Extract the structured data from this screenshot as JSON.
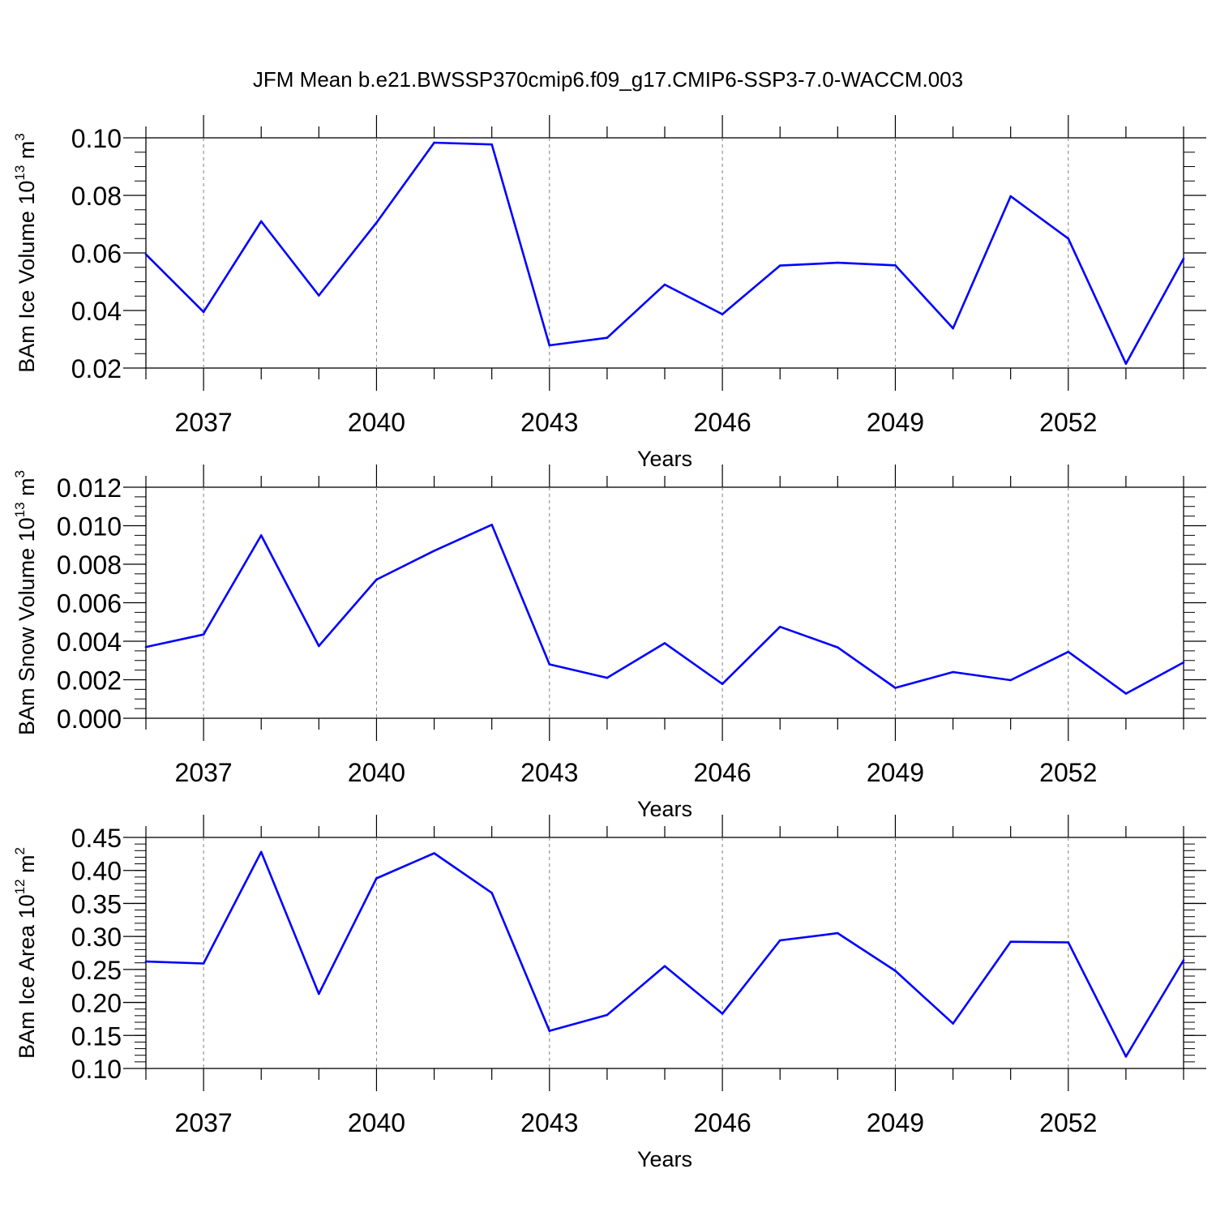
{
  "title": "JFM Mean b.e21.BWSSP370cmip6.f09_g17.CMIP6-SSP3-7.0-WACCM.003",
  "line_color": "#0000ff",
  "chart_data": [
    {
      "type": "line",
      "ylabel_main": "BAm Ice Volume 10",
      "ylabel_exp": "13",
      "ylabel_unit": " m",
      "ylabel_unit_exp": "3",
      "xlabel": "Years",
      "xlim": [
        2036,
        2054
      ],
      "ylim": [
        0.02,
        0.1
      ],
      "x_ticks": [
        2037,
        2040,
        2043,
        2046,
        2049,
        2052
      ],
      "x_tick_labels": [
        "2037",
        "2040",
        "2043",
        "2046",
        "2049",
        "2052"
      ],
      "y_ticks": [
        0.02,
        0.04,
        0.06,
        0.08,
        0.1
      ],
      "y_tick_labels": [
        "0.02",
        "0.04",
        "0.06",
        "0.08",
        "0.10"
      ],
      "y_minor_step": 0.005,
      "x": [
        2036,
        2037,
        2038,
        2039,
        2040,
        2041,
        2042,
        2043,
        2044,
        2045,
        2046,
        2047,
        2048,
        2049,
        2050,
        2051,
        2052,
        2053,
        2054
      ],
      "values": [
        0.0595,
        0.0395,
        0.071,
        0.0452,
        0.0705,
        0.0983,
        0.0977,
        0.0279,
        0.0305,
        0.049,
        0.0387,
        0.0556,
        0.0566,
        0.0557,
        0.0338,
        0.0797,
        0.065,
        0.0215,
        0.058
      ]
    },
    {
      "type": "line",
      "ylabel_main": "BAm Snow Volume 10",
      "ylabel_exp": "13",
      "ylabel_unit": " m",
      "ylabel_unit_exp": "3",
      "xlabel": "Years",
      "xlim": [
        2036,
        2054
      ],
      "ylim": [
        0.0,
        0.012
      ],
      "x_ticks": [
        2037,
        2040,
        2043,
        2046,
        2049,
        2052
      ],
      "x_tick_labels": [
        "2037",
        "2040",
        "2043",
        "2046",
        "2049",
        "2052"
      ],
      "y_ticks": [
        0.0,
        0.002,
        0.004,
        0.006,
        0.008,
        0.01,
        0.012
      ],
      "y_tick_labels": [
        "0.000",
        "0.002",
        "0.004",
        "0.006",
        "0.008",
        "0.010",
        "0.012"
      ],
      "y_minor_step": 0.0005,
      "x": [
        2036,
        2037,
        2038,
        2039,
        2040,
        2041,
        2042,
        2043,
        2044,
        2045,
        2046,
        2047,
        2048,
        2049,
        2050,
        2051,
        2052,
        2053,
        2054
      ],
      "values": [
        0.0037,
        0.00435,
        0.0095,
        0.00375,
        0.0072,
        0.0087,
        0.01005,
        0.0028,
        0.0021,
        0.0039,
        0.00178,
        0.00475,
        0.00368,
        0.00158,
        0.0024,
        0.00198,
        0.00345,
        0.00128,
        0.0029
      ]
    },
    {
      "type": "line",
      "ylabel_main": "BAm Ice Area 10",
      "ylabel_exp": "12",
      "ylabel_unit": " m",
      "ylabel_unit_exp": "2",
      "xlabel": "Years",
      "xlim": [
        2036,
        2054
      ],
      "ylim": [
        0.1,
        0.45
      ],
      "x_ticks": [
        2037,
        2040,
        2043,
        2046,
        2049,
        2052
      ],
      "x_tick_labels": [
        "2037",
        "2040",
        "2043",
        "2046",
        "2049",
        "2052"
      ],
      "y_ticks": [
        0.1,
        0.15,
        0.2,
        0.25,
        0.3,
        0.35,
        0.4,
        0.45
      ],
      "y_tick_labels": [
        "0.10",
        "0.15",
        "0.20",
        "0.25",
        "0.30",
        "0.35",
        "0.40",
        "0.45"
      ],
      "y_minor_step": 0.01,
      "x": [
        2036,
        2037,
        2038,
        2039,
        2040,
        2041,
        2042,
        2043,
        2044,
        2045,
        2046,
        2047,
        2048,
        2049,
        2050,
        2051,
        2052,
        2053,
        2054
      ],
      "values": [
        0.262,
        0.259,
        0.428,
        0.213,
        0.388,
        0.426,
        0.366,
        0.157,
        0.181,
        0.255,
        0.183,
        0.294,
        0.305,
        0.248,
        0.168,
        0.292,
        0.291,
        0.118,
        0.264
      ]
    }
  ]
}
